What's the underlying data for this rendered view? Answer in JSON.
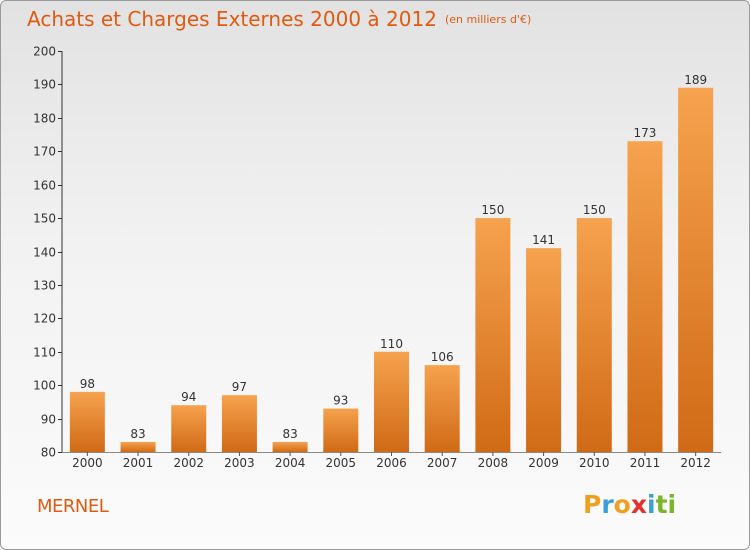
{
  "header": {
    "title": "Achats et Charges Externes 2000 à 2012",
    "subtitle": "(en milliers d'€)"
  },
  "footer": {
    "commune": "MERNEL",
    "brand_letters": [
      "P",
      "r",
      "o",
      "x",
      "i",
      "ti"
    ]
  },
  "colors": {
    "bar_top": "#f6a24e",
    "bar_bottom": "#d06a16",
    "text_accent": "#e05a10"
  },
  "chart_data": {
    "type": "bar",
    "title": "Achats et Charges Externes 2000 à 2012",
    "categories": [
      "2000",
      "2001",
      "2002",
      "2003",
      "2004",
      "2005",
      "2006",
      "2007",
      "2008",
      "2009",
      "2010",
      "2011",
      "2012"
    ],
    "values": [
      98,
      83,
      94,
      97,
      83,
      93,
      110,
      106,
      150,
      141,
      150,
      173,
      189
    ],
    "ylim": [
      80,
      200
    ],
    "yticks": [
      80,
      90,
      100,
      110,
      120,
      130,
      140,
      150,
      160,
      170,
      180,
      190,
      200
    ],
    "grid": false,
    "legend": "none"
  }
}
